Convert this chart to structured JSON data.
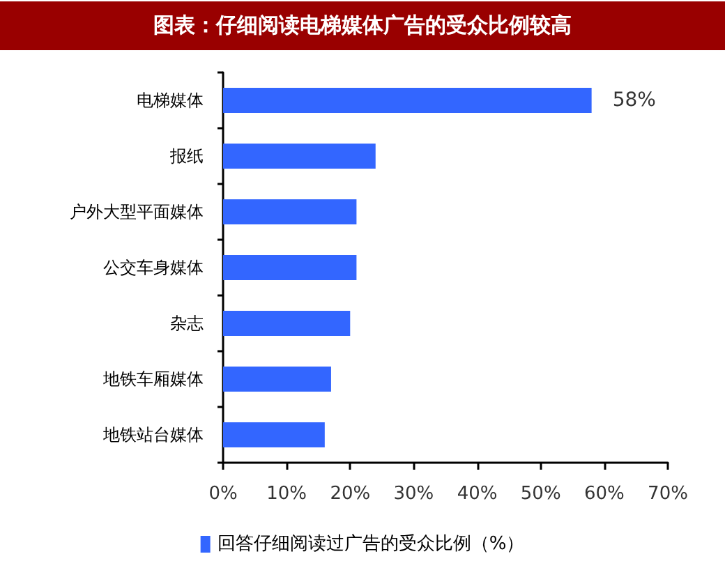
{
  "chart_data": {
    "type": "bar",
    "orientation": "horizontal",
    "title": "图表：仔细阅读电梯媒体广告的受众比例较高",
    "categories": [
      "电梯媒体",
      "报纸",
      "户外大型平面媒体",
      "公交车身媒体",
      "杂志",
      "地铁车厢媒体",
      "地铁站台媒体"
    ],
    "series": [
      {
        "name": "回答仔细阅读过广告的受众比例（%）",
        "color": "#3366ff",
        "values": [
          58,
          24,
          21,
          21,
          20,
          17,
          16
        ],
        "value_labels": [
          "58%",
          null,
          null,
          null,
          null,
          null,
          null
        ]
      }
    ],
    "xlim": [
      0,
      70
    ],
    "xticks": [
      {
        "value": 0,
        "label": "0%"
      },
      {
        "value": 10,
        "label": "10%"
      },
      {
        "value": 20,
        "label": "20%"
      },
      {
        "value": 30,
        "label": "30%"
      },
      {
        "value": 40,
        "label": "40%"
      },
      {
        "value": 50,
        "label": "50%"
      },
      {
        "value": 60,
        "label": "60%"
      },
      {
        "value": 70,
        "label": "70%"
      }
    ],
    "legend": "bottom"
  }
}
